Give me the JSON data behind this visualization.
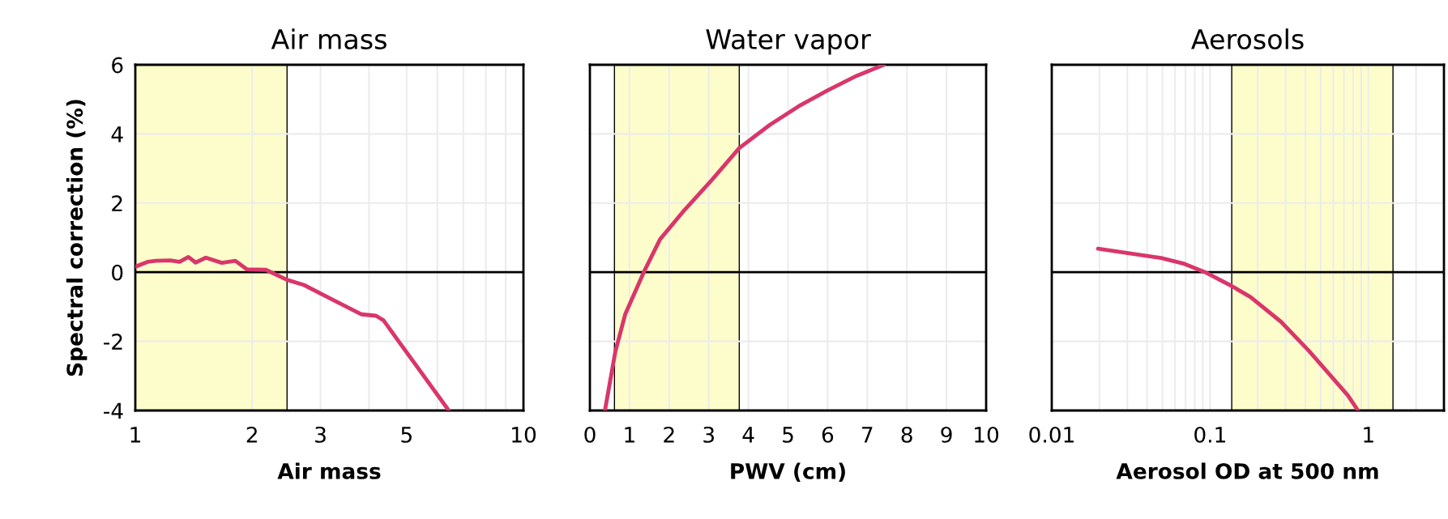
{
  "chart_data": [
    {
      "type": "line",
      "title": "Air mass",
      "xlabel": "Air mass",
      "ylabel": "Spectral correction (%)",
      "log": "x",
      "grid": true,
      "line_style": "solid",
      "xlim": [
        1,
        10
      ],
      "xticks": [
        1,
        2,
        3,
        {
          "value": 4,
          "label": null
        },
        5,
        {
          "value": 6,
          "label": null
        },
        {
          "value": 7,
          "label": null
        },
        {
          "value": 8,
          "label": null
        },
        {
          "value": 9,
          "label": null
        },
        10
      ],
      "ylim": [
        -4,
        6
      ],
      "yticks": [
        -4,
        -2,
        0,
        2,
        4,
        6
      ],
      "ref_lines": [
        {
          "axis": "y",
          "value": 0,
          "color": "#000000"
        }
      ],
      "bands": [
        {
          "axis": "x",
          "from": 1,
          "to": 2.46,
          "color": "#fdfdcc"
        }
      ],
      "series": [
        {
          "color": "#d9366a",
          "x": [
            1,
            1.075,
            1.13,
            1.23,
            1.3,
            1.37,
            1.43,
            1.52,
            1.67,
            1.81,
            1.94,
            2.17,
            2.46,
            2.72,
            3.23,
            3.83,
            4.17,
            4.36,
            4.87,
            6.42
          ],
          "values": [
            0.16,
            0.3,
            0.33,
            0.34,
            0.3,
            0.44,
            0.28,
            0.42,
            0.27,
            0.33,
            0.08,
            0.07,
            -0.22,
            -0.37,
            -0.8,
            -1.22,
            -1.26,
            -1.39,
            -2.14,
            -4.0
          ]
        }
      ]
    },
    {
      "type": "line",
      "title": "Water vapor",
      "xlabel": "PWV (cm)",
      "tick_labels": "x",
      "grid": true,
      "line_style": "solid",
      "xlim": [
        0,
        10
      ],
      "xticks": [
        0,
        1,
        2,
        3,
        4,
        5,
        6,
        7,
        8,
        9,
        10
      ],
      "ylim": [
        -4,
        6
      ],
      "yticks": [
        -4,
        -2,
        0,
        2,
        4,
        6
      ],
      "ref_lines": [
        {
          "axis": "y",
          "value": 0,
          "color": "#000000"
        }
      ],
      "bands": [
        {
          "axis": "x",
          "from": 0.62,
          "to": 3.77,
          "color": "#fdfdcc"
        }
      ],
      "series": [
        {
          "color": "#d9366a",
          "x": [
            0.38,
            0.64,
            0.89,
            1.36,
            1.77,
            2.35,
            3.08,
            3.77,
            4.54,
            5.27,
            6.0,
            6.73,
            7.42
          ],
          "values": [
            -4.0,
            -2.31,
            -1.22,
            0,
            0.95,
            1.75,
            2.67,
            3.59,
            4.26,
            4.8,
            5.26,
            5.68,
            6.0
          ]
        }
      ]
    },
    {
      "type": "line",
      "title": "Aerosols",
      "xlabel": "Aerosol OD at 500 nm",
      "tick_labels": "x",
      "log": "x",
      "grid": true,
      "line_style": "solid",
      "xlim": [
        0.01,
        3
      ],
      "xticks": [
        0.01,
        {
          "value": 0.02,
          "label": null
        },
        {
          "value": 0.03,
          "label": null
        },
        {
          "value": 0.04,
          "label": null
        },
        {
          "value": 0.05,
          "label": null
        },
        {
          "value": 0.06,
          "label": null
        },
        {
          "value": 0.07,
          "label": null
        },
        {
          "value": 0.08,
          "label": null
        },
        {
          "value": 0.09,
          "label": null
        },
        0.1,
        {
          "value": 0.2,
          "label": null
        },
        {
          "value": 0.3,
          "label": null
        },
        {
          "value": 0.4,
          "label": null
        },
        {
          "value": 0.5,
          "label": null
        },
        {
          "value": 0.6,
          "label": null
        },
        {
          "value": 0.7,
          "label": null
        },
        {
          "value": 0.8,
          "label": null
        },
        {
          "value": 0.9,
          "label": null
        },
        1,
        {
          "value": 2,
          "label": null
        }
      ],
      "ylim": [
        -4,
        6
      ],
      "yticks": [
        -4,
        -2,
        0,
        2,
        4,
        6
      ],
      "ref_lines": [
        {
          "axis": "y",
          "value": 0,
          "color": "#000000"
        }
      ],
      "bands": [
        {
          "axis": "x",
          "from": 0.137,
          "to": 1.43,
          "color": "#fdfdcc"
        }
      ],
      "series": [
        {
          "color": "#d9366a",
          "x": [
            0.0196,
            0.0297,
            0.049,
            0.069,
            0.093,
            0.137,
            0.18,
            0.28,
            0.42,
            0.74,
            0.86
          ],
          "values": [
            0.68,
            0.56,
            0.41,
            0.24,
            0,
            -0.4,
            -0.72,
            -1.43,
            -2.27,
            -3.56,
            -4.0
          ]
        }
      ]
    }
  ]
}
